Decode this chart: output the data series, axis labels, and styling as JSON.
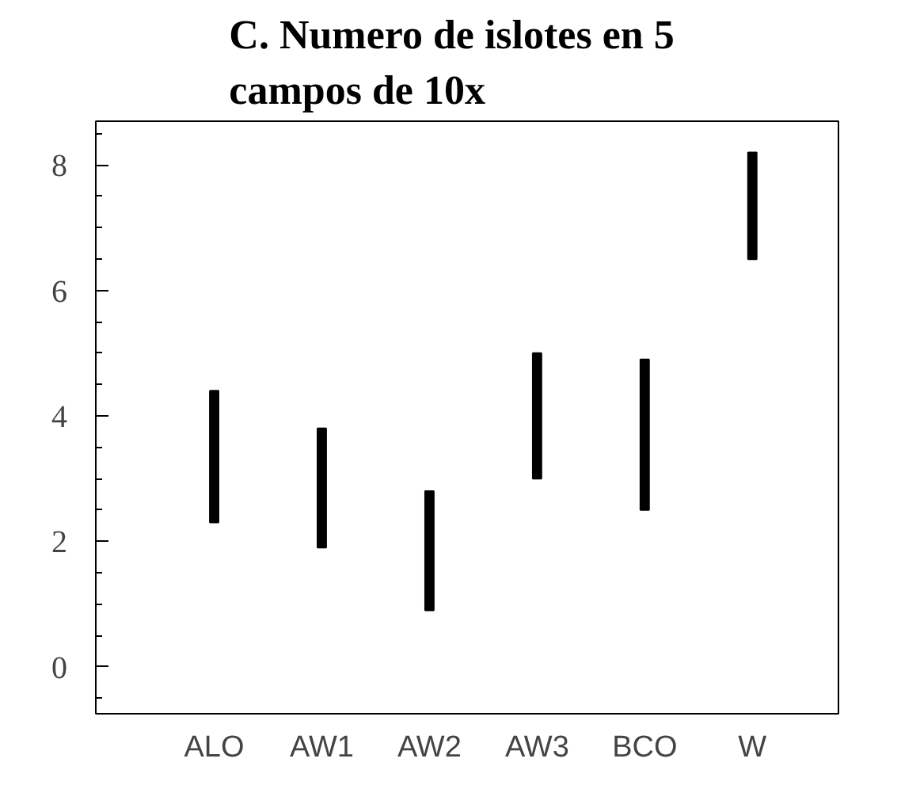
{
  "chart_data": {
    "type": "bar",
    "title": "C.    Numero de islotes en 5\ncampos  de 10x",
    "categories": [
      "ALO",
      "AW1",
      "AW2",
      "AW3",
      "BCO",
      "W"
    ],
    "base": [
      2.3,
      1.9,
      0.9,
      3.0,
      2.5,
      6.5
    ],
    "values": [
      2.1,
      1.9,
      1.9,
      2.0,
      2.4,
      1.7
    ],
    "color": "#000000",
    "ylim": [
      -0.75,
      8.7
    ],
    "yticks": [
      0,
      2,
      4,
      6,
      8
    ],
    "grid": false
  }
}
